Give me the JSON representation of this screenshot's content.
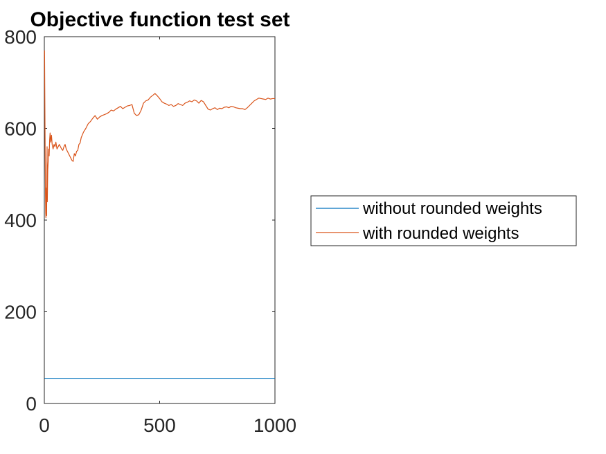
{
  "chart_data": {
    "type": "line",
    "title": "Objective function test set",
    "xlabel": "",
    "ylabel": "",
    "xlim": [
      0,
      1000
    ],
    "ylim": [
      0,
      800
    ],
    "x_ticks": [
      "0",
      "500",
      "1000"
    ],
    "y_ticks": [
      "0",
      "200",
      "400",
      "600",
      "800"
    ],
    "grid": false,
    "legend_position": "right-outside",
    "series": [
      {
        "name": "without rounded weights",
        "color": "#0072BD",
        "x": [
          1,
          100,
          200,
          300,
          400,
          500,
          600,
          700,
          800,
          900,
          1000
        ],
        "y": [
          55,
          55,
          55,
          55,
          55,
          55,
          55,
          55,
          55,
          55,
          55
        ]
      },
      {
        "name": "with rounded weights",
        "color": "#D95319",
        "x": [
          1,
          2,
          3,
          4,
          5,
          6,
          7,
          8,
          9,
          10,
          11,
          12,
          13,
          14,
          15,
          17,
          19,
          21,
          23,
          25,
          28,
          31,
          34,
          38,
          42,
          46,
          50,
          55,
          60,
          65,
          70,
          75,
          80,
          85,
          90,
          95,
          100,
          105,
          110,
          115,
          120,
          125,
          130,
          135,
          140,
          145,
          150,
          155,
          160,
          170,
          180,
          190,
          200,
          210,
          220,
          230,
          240,
          250,
          260,
          270,
          280,
          290,
          300,
          310,
          320,
          330,
          340,
          350,
          360,
          370,
          380,
          390,
          400,
          410,
          420,
          430,
          440,
          450,
          460,
          470,
          480,
          490,
          500,
          510,
          520,
          530,
          540,
          550,
          560,
          570,
          580,
          590,
          600,
          610,
          620,
          630,
          640,
          650,
          660,
          670,
          680,
          690,
          700,
          710,
          720,
          730,
          740,
          750,
          760,
          770,
          780,
          790,
          800,
          810,
          820,
          830,
          840,
          850,
          860,
          870,
          880,
          890,
          900,
          910,
          920,
          930,
          940,
          950,
          960,
          970,
          980,
          990,
          1000
        ],
        "y": [
          770,
          680,
          600,
          520,
          460,
          415,
          405,
          430,
          470,
          410,
          500,
          560,
          440,
          480,
          510,
          530,
          555,
          540,
          575,
          590,
          570,
          585,
          565,
          555,
          565,
          560,
          570,
          555,
          560,
          565,
          560,
          555,
          552,
          560,
          565,
          555,
          550,
          545,
          540,
          535,
          530,
          528,
          545,
          540,
          550,
          552,
          565,
          568,
          580,
          592,
          600,
          610,
          615,
          622,
          628,
          620,
          625,
          628,
          630,
          632,
          635,
          640,
          638,
          642,
          645,
          648,
          643,
          646,
          649,
          650,
          652,
          633,
          628,
          630,
          640,
          655,
          660,
          662,
          668,
          672,
          676,
          671,
          665,
          658,
          655,
          653,
          650,
          652,
          648,
          650,
          654,
          652,
          650,
          655,
          657,
          660,
          658,
          662,
          660,
          655,
          661,
          658,
          650,
          642,
          640,
          643,
          645,
          641,
          644,
          643,
          646,
          647,
          645,
          648,
          647,
          645,
          644,
          643,
          643,
          641,
          645,
          650,
          655,
          660,
          663,
          666,
          665,
          664,
          663,
          666,
          664,
          665,
          665
        ]
      }
    ]
  }
}
